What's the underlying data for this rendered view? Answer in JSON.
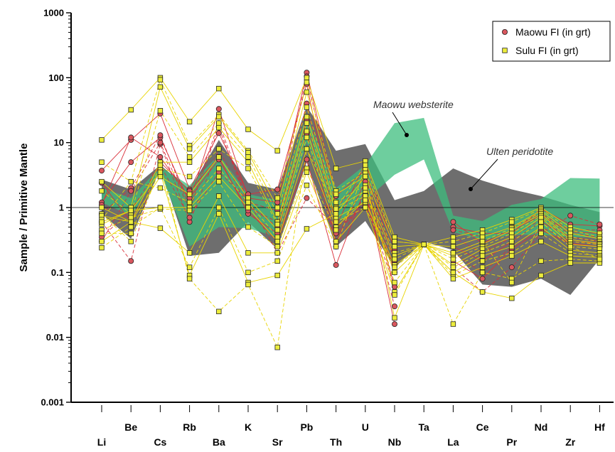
{
  "chart_data": {
    "type": "line",
    "ylabel": "Sample / Primitive Mantle",
    "xlabel": "",
    "yscale": "log",
    "ylim": [
      0.001,
      1000
    ],
    "yticks": [
      {
        "value": 0.001,
        "label": "0.001"
      },
      {
        "value": 0.01,
        "label": "0.01"
      },
      {
        "value": 0.1,
        "label": "0.1"
      },
      {
        "value": 1,
        "label": "1"
      },
      {
        "value": 10,
        "label": "10"
      },
      {
        "value": 100,
        "label": "100"
      },
      {
        "value": 1000,
        "label": "1000"
      }
    ],
    "categories": [
      "Li",
      "Be",
      "Cs",
      "Rb",
      "Ba",
      "K",
      "Sr",
      "Pb",
      "Th",
      "U",
      "Nb",
      "Ta",
      "La",
      "Ce",
      "Pr",
      "Nd",
      "Zr",
      "Hf"
    ],
    "reference_line": 1,
    "legend": {
      "position": "top-right",
      "entries": [
        {
          "label": "Maowu FI (in grt)",
          "marker": "circle",
          "fill": "#d9575e",
          "line_color": "#d9303a"
        },
        {
          "label": "Sulu FI (in grt)",
          "marker": "square",
          "fill": "#eded3c",
          "line_color": "#e8d400"
        }
      ]
    },
    "annotations": [
      {
        "text": "Maowu websterite",
        "points_to_category": "Ta",
        "points_to_value": 20
      },
      {
        "text": "Ulten peridotite",
        "points_to_category": "Ce",
        "points_to_value": 2.6
      }
    ],
    "areas": [
      {
        "name": "Ulten peridotite",
        "color": "#6e6e6e",
        "upper": [
          2.7,
          1.9,
          4.5,
          1.9,
          11,
          2.4,
          1.9,
          36,
          7.5,
          9.5,
          1.3,
          1.8,
          4,
          2.6,
          1.9,
          1.5,
          1.1,
          0.85
        ],
        "lower": [
          0.8,
          0.33,
          4.0,
          0.18,
          0.2,
          0.6,
          0.23,
          5.0,
          0.25,
          0.62,
          0.12,
          0.3,
          0.22,
          0.065,
          0.06,
          0.08,
          0.045,
          0.16
        ]
      },
      {
        "name": "Maowu websterite",
        "color": "#3ebd7d",
        "upper": [
          2.0,
          1.4,
          4.2,
          2.2,
          6.5,
          1.6,
          1.3,
          26,
          2.0,
          4.5,
          20,
          24,
          0.75,
          0.62,
          1.1,
          1.35,
          2.85,
          2.8
        ],
        "lower": [
          1.2,
          0.75,
          3.5,
          0.25,
          0.5,
          0.48,
          0.35,
          10,
          0.55,
          1.3,
          3.2,
          5.5,
          0.42,
          0.32,
          0.38,
          0.38,
          0.35,
          0.35
        ]
      }
    ],
    "series": [
      {
        "name": "Maowu FI (in grt)",
        "samples": [
          [
            1.2,
            5.0,
            12,
            1.2,
            33,
            1.4,
            1.2,
            120,
            1.5,
            3.8,
            0.15,
            null,
            0.5,
            0.4,
            0.4,
            0.95,
            0.55,
            0.52
          ],
          [
            0.8,
            2.0,
            13,
            1.0,
            20,
            1.2,
            0.9,
            105,
            1.0,
            3.0,
            0.1,
            null,
            0.45,
            0.35,
            0.5,
            0.8,
            0.45,
            0.45
          ],
          [
            3.7,
            11,
            28,
            1.9,
            14,
            1.6,
            1.9,
            80,
            0.5,
            5.0,
            0.22,
            null,
            0.6,
            0.28,
            0.45,
            0.75,
            0.42,
            0.4
          ],
          [
            0.6,
            0.15,
            9.5,
            0.6,
            8.0,
            1.0,
            0.6,
            40,
            0.4,
            1.2,
            0.06,
            null,
            0.35,
            0.2,
            0.35,
            0.65,
            0.4,
            0.35
          ],
          [
            2.4,
            0.6,
            5.0,
            1.8,
            6.0,
            0.8,
            0.4,
            22,
            0.3,
            2.5,
            0.06,
            null,
            0.25,
            0.15,
            0.3,
            0.6,
            0.35,
            0.3
          ],
          [
            0.3,
            1.8,
            10,
            0.9,
            17,
            1.1,
            0.5,
            14,
            0.25,
            1.6,
            0.03,
            null,
            0.2,
            0.1,
            0.25,
            0.5,
            0.3,
            0.28
          ],
          [
            1.1,
            12,
            6.0,
            1.4,
            5.5,
            0.9,
            0.3,
            5.5,
            0.13,
            2.0,
            0.016,
            null,
            0.15,
            0.08,
            0.23,
            0.45,
            0.28,
            0.25
          ],
          [
            0.35,
            0.9,
            4.5,
            0.7,
            3.5,
            1.3,
            0.2,
            1.4,
            0.5,
            1.0,
            0.13,
            null,
            0.12,
            0.05,
            0.12,
            0.4,
            0.75,
            0.55
          ]
        ]
      },
      {
        "name": "Sulu FI (in grt)",
        "samples": [
          [
            11,
            32,
            100,
            21,
            68,
            16,
            7.5,
            100,
            4.0,
            5.2,
            0.35,
            0.27,
            0.35,
            0.45,
            0.65,
            1.0,
            0.5,
            0.4
          ],
          [
            5.0,
            2.5,
            93,
            9.0,
            27,
            7.5,
            1.4,
            85,
            1.8,
            3.5,
            0.3,
            0.27,
            0.3,
            0.4,
            0.6,
            0.95,
            0.45,
            0.35
          ],
          [
            2.5,
            1.0,
            72,
            8.0,
            25,
            7.0,
            1.0,
            60,
            1.6,
            3.0,
            0.25,
            0.27,
            0.25,
            0.35,
            0.5,
            0.9,
            0.4,
            0.33
          ],
          [
            1.8,
            0.8,
            31,
            6.0,
            20,
            6.0,
            0.8,
            35,
            1.2,
            2.2,
            0.2,
            0.27,
            0.2,
            0.3,
            0.48,
            0.85,
            0.35,
            0.3
          ],
          [
            1.0,
            0.6,
            5.0,
            5.0,
            17,
            5.0,
            0.6,
            25,
            1.0,
            1.8,
            0.18,
            0.27,
            0.18,
            0.27,
            0.45,
            0.8,
            0.32,
            0.28
          ],
          [
            0.8,
            0.3,
            4.0,
            3.0,
            8.0,
            4.0,
            0.55,
            20,
            0.9,
            1.5,
            0.16,
            0.27,
            0.16,
            0.25,
            0.4,
            0.75,
            0.3,
            0.27
          ],
          [
            0.75,
            0.6,
            3.0,
            1.6,
            6.0,
            1.4,
            0.45,
            15,
            0.7,
            1.2,
            0.13,
            0.27,
            0.13,
            0.23,
            0.35,
            0.7,
            0.27,
            0.25
          ],
          [
            0.65,
            2.5,
            2.0,
            1.2,
            4.0,
            1.2,
            0.35,
            12,
            0.6,
            1.0,
            0.12,
            0.27,
            0.12,
            0.2,
            0.3,
            0.6,
            0.25,
            0.23
          ],
          [
            0.55,
            0.9,
            1.0,
            1.0,
            3.0,
            1.0,
            0.3,
            8.0,
            0.5,
            1.3,
            0.1,
            0.27,
            0.1,
            0.18,
            0.25,
            0.5,
            0.22,
            0.2
          ],
          [
            0.45,
            0.7,
            0.95,
            0.9,
            2.5,
            0.5,
            0.25,
            4.0,
            0.45,
            2.0,
            0.07,
            0.27,
            0.09,
            0.15,
            0.2,
            0.4,
            0.2,
            0.18
          ],
          [
            0.3,
            0.6,
            0.48,
            0.2,
            1.5,
            0.2,
            0.2,
            3.5,
            0.3,
            1.0,
            0.05,
            0.27,
            0.08,
            0.12,
            0.18,
            0.3,
            0.18,
            0.17
          ],
          [
            0.24,
            0.5,
            1.0,
            0.12,
            1.0,
            0.1,
            0.15,
            2.2,
            0.25,
            4.0,
            0.045,
            0.27,
            0.016,
            0.1,
            0.08,
            0.15,
            0.16,
            0.15
          ],
          [
            0.6,
            0.9,
            3.5,
            0.09,
            0.8,
            0.07,
            0.09,
            0.47,
            0.8,
            3.0,
            0.02,
            0.27,
            0.1,
            0.05,
            0.04,
            0.09,
            0.14,
            0.14
          ],
          [
            0.4,
            0.4,
            4.5,
            0.08,
            0.025,
            0.065,
            0.007,
            8.0,
            0.95,
            4.5,
            0.3,
            0.27,
            0.2,
            0.3,
            0.07,
            0.6,
            0.25,
            0.16
          ]
        ]
      }
    ]
  }
}
